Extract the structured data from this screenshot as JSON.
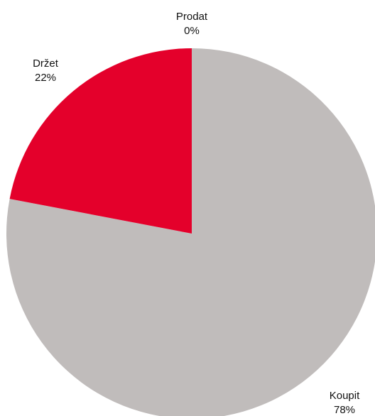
{
  "chart_data": {
    "type": "pie",
    "slices": [
      {
        "label": "Koupit",
        "percent_text": "78%",
        "value": 78,
        "color": "#c0bcbb"
      },
      {
        "label": "Držet",
        "percent_text": "22%",
        "value": 22,
        "color": "#e4002b"
      },
      {
        "label": "Prodat",
        "percent_text": "0%",
        "value": 0,
        "color": "#8a8a8a"
      }
    ],
    "legend": "none"
  }
}
